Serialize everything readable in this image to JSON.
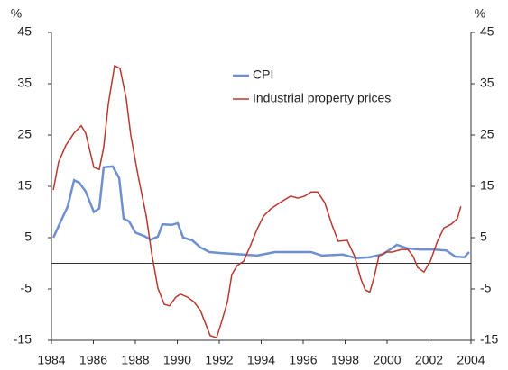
{
  "chart_data": {
    "type": "line",
    "y_unit": "%",
    "y2_unit": "%",
    "xlim": [
      1984,
      2004
    ],
    "xticks": [
      1984,
      1986,
      1988,
      1990,
      1992,
      1994,
      1996,
      1998,
      2000,
      2002,
      2004
    ],
    "ylim": [
      -15,
      45
    ],
    "yticks": [
      -15,
      -5,
      5,
      15,
      25,
      35,
      45
    ],
    "y2lim": [
      -15,
      45
    ],
    "y2ticks": [
      -15,
      -5,
      5,
      15,
      25,
      35,
      45
    ],
    "legend": "top",
    "series": [
      {
        "name": "CPI",
        "color": "#6f8fcf",
        "x": [
          1984.09,
          1984.56,
          1984.77,
          1985.08,
          1985.33,
          1985.63,
          1986.02,
          1986.28,
          1986.49,
          1986.92,
          1987.23,
          1987.44,
          1987.7,
          1988.0,
          1988.43,
          1988.73,
          1989.07,
          1989.29,
          1989.72,
          1990.02,
          1990.28,
          1990.71,
          1991.1,
          1991.53,
          1992.08,
          1992.82,
          1993.8,
          1994.66,
          1995.31,
          1996.38,
          1996.9,
          1997.89,
          1998.53,
          1999.18,
          1999.82,
          2000.47,
          2000.99,
          2001.54,
          2002.19,
          2002.83,
          2003.26,
          2003.69,
          2003.91
        ],
        "values": [
          5,
          9.2,
          11,
          16.2,
          15.7,
          14,
          10,
          10.7,
          18.7,
          18.9,
          16.6,
          8.7,
          8.2,
          6,
          5.3,
          4.6,
          5.2,
          7.6,
          7.5,
          7.8,
          5,
          4.5,
          3.1,
          2.2,
          2,
          1.8,
          1.5,
          2.2,
          2.2,
          2.2,
          1.5,
          1.7,
          1,
          1.2,
          1.8,
          3.6,
          2.9,
          2.7,
          2.7,
          2.5,
          1.3,
          1.2,
          2.2
        ]
      },
      {
        "name": "Industrial property prices",
        "color": "#b8392f",
        "axis": "y2",
        "x": [
          1984.09,
          1984.34,
          1984.69,
          1985.08,
          1985.42,
          1985.63,
          1986.02,
          1986.28,
          1986.49,
          1986.71,
          1987.01,
          1987.27,
          1987.57,
          1987.78,
          1988.13,
          1988.52,
          1988.77,
          1989.07,
          1989.38,
          1989.63,
          1989.93,
          1990.15,
          1990.49,
          1990.79,
          1991.1,
          1991.35,
          1991.57,
          1991.87,
          1992.08,
          1992.39,
          1992.6,
          1992.86,
          1993.16,
          1993.5,
          1993.8,
          1994.11,
          1994.45,
          1994.88,
          1995.4,
          1995.74,
          1996.08,
          1996.38,
          1996.69,
          1997.03,
          1997.37,
          1997.67,
          1998.1,
          1998.45,
          1998.75,
          1998.96,
          1999.18,
          1999.39,
          1999.61,
          1999.95,
          2000.25,
          2000.68,
          2000.99,
          2001.24,
          2001.46,
          2001.76,
          2002.06,
          2002.4,
          2002.71,
          2003.05,
          2003.35,
          2003.52
        ],
        "values": [
          14.3,
          19.7,
          23,
          25.4,
          26.8,
          25.4,
          18.7,
          18.3,
          22.6,
          31,
          38.5,
          38,
          32,
          25,
          17.1,
          9.2,
          2.2,
          -4.8,
          -8,
          -8.3,
          -6.6,
          -6,
          -6.6,
          -7.5,
          -9.2,
          -11.8,
          -14.1,
          -14.5,
          -11.8,
          -7.5,
          -2.2,
          -0.4,
          0.4,
          3.6,
          6.6,
          9.2,
          10.6,
          11.8,
          13.1,
          12.7,
          13.1,
          13.9,
          13.9,
          11.8,
          7.5,
          4.3,
          4.5,
          1.4,
          -3,
          -5.2,
          -5.6,
          -2.6,
          1.4,
          2.2,
          2.2,
          2.7,
          2.7,
          1.4,
          -0.8,
          -1.7,
          0.4,
          4.3,
          6.9,
          7.6,
          8.7,
          11.1
        ]
      }
    ]
  }
}
